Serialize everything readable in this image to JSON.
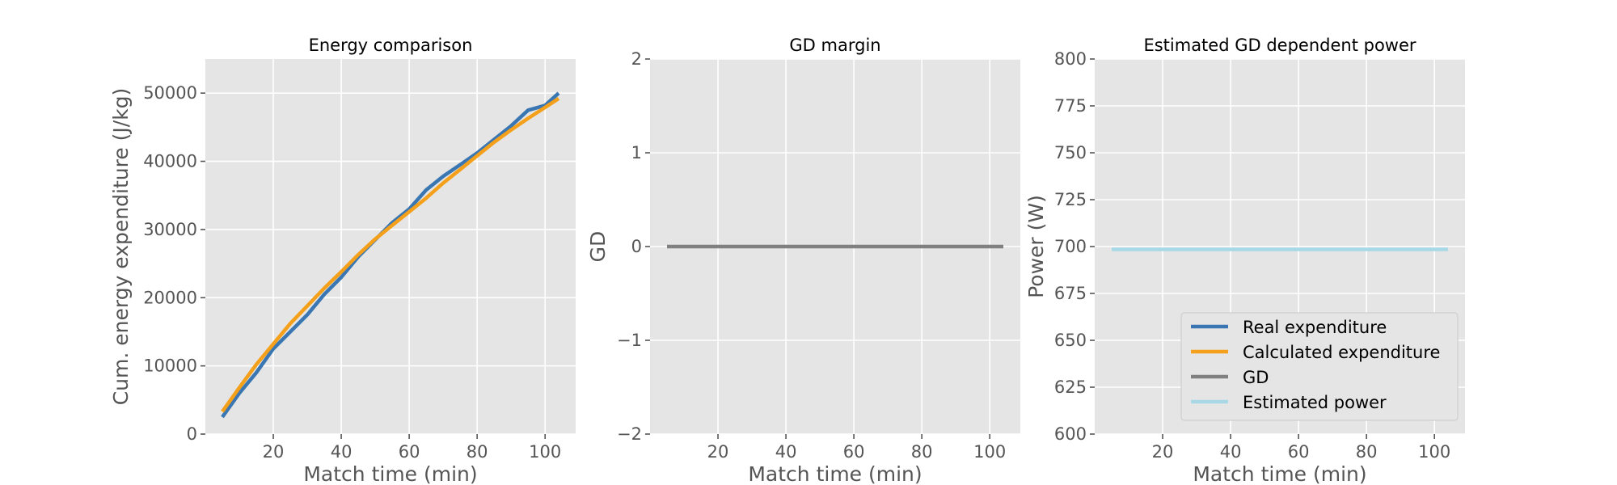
{
  "chart_data": [
    {
      "type": "line",
      "title": "Energy comparison",
      "xlabel": "Match time (min)",
      "ylabel": "Cum. energy expenditure (J/kg)",
      "xlim": [
        0,
        109
      ],
      "ylim": [
        0,
        55000
      ],
      "xticks": [
        20,
        40,
        60,
        80,
        100
      ],
      "yticks": [
        0,
        10000,
        20000,
        30000,
        40000,
        50000
      ],
      "grid": true,
      "series": [
        {
          "name": "Real expenditure",
          "color": "#3a77b2",
          "x": [
            5,
            10,
            15,
            20,
            25,
            30,
            35,
            40,
            45,
            50,
            55,
            60,
            65,
            70,
            75,
            80,
            85,
            90,
            95,
            100,
            104
          ],
          "y": [
            2500,
            6000,
            9000,
            12500,
            15000,
            17500,
            20500,
            23000,
            26000,
            28500,
            31000,
            33000,
            35800,
            37800,
            39500,
            41200,
            43200,
            45200,
            47500,
            48200,
            50000
          ]
        },
        {
          "name": "Calculated expenditure",
          "color": "#f5a01a",
          "x": [
            5,
            10,
            15,
            20,
            25,
            30,
            35,
            40,
            45,
            50,
            55,
            60,
            65,
            70,
            75,
            80,
            85,
            90,
            95,
            100,
            104
          ],
          "y": [
            3300,
            6800,
            10200,
            13200,
            16200,
            18800,
            21400,
            23800,
            26300,
            28600,
            30600,
            32600,
            34600,
            36800,
            38800,
            40800,
            42800,
            44600,
            46300,
            47900,
            49200
          ]
        }
      ]
    },
    {
      "type": "line",
      "title": "GD margin",
      "xlabel": "Match time (min)",
      "ylabel": "GD",
      "xlim": [
        0,
        109
      ],
      "ylim": [
        -2,
        2
      ],
      "xticks": [
        20,
        40,
        60,
        80,
        100
      ],
      "yticks": [
        -2,
        -1,
        0,
        1,
        2
      ],
      "grid": true,
      "series": [
        {
          "name": "GD",
          "color": "#808080",
          "x": [
            5,
            104
          ],
          "y": [
            0,
            0
          ]
        }
      ]
    },
    {
      "type": "line",
      "title": "Estimated GD dependent power",
      "xlabel": "Match time (min)",
      "ylabel": "Power (W)",
      "xlim": [
        0,
        109
      ],
      "ylim": [
        600,
        800
      ],
      "xticks": [
        20,
        40,
        60,
        80,
        100
      ],
      "yticks": [
        600,
        625,
        650,
        675,
        700,
        725,
        750,
        775,
        800
      ],
      "grid": true,
      "series": [
        {
          "name": "Estimated power",
          "color": "#a8d8e6",
          "x": [
            5,
            104
          ],
          "y": [
            698.5,
            698.5
          ]
        }
      ]
    }
  ],
  "legend": {
    "placement": "lower-right of third panel",
    "entries": [
      {
        "label": "Real expenditure",
        "color": "#3a77b2"
      },
      {
        "label": "Calculated expenditure",
        "color": "#f5a01a"
      },
      {
        "label": "GD",
        "color": "#808080"
      },
      {
        "label": "Estimated power",
        "color": "#a8d8e6"
      }
    ]
  }
}
